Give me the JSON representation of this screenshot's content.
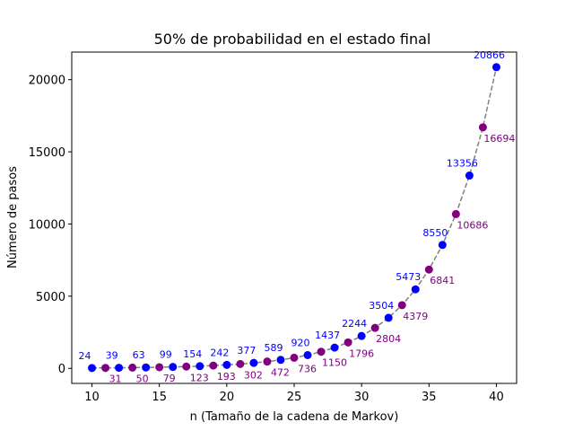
{
  "chart_data": {
    "type": "scatter",
    "title": "50% de probabilidad en el estado final",
    "xlabel": "n (Tamaño de la cadena de Markov)",
    "ylabel": "Número de pasos",
    "xlim": [
      8.5,
      41.5
    ],
    "ylim": [
      -1043,
      21909
    ],
    "xticks": [
      10,
      15,
      20,
      25,
      30,
      35,
      40
    ],
    "yticks": [
      0,
      5000,
      10000,
      15000,
      20000
    ],
    "grid": false,
    "colors": {
      "even": "#0000ff",
      "odd": "#800080",
      "line": "#808080"
    },
    "x": [
      10,
      11,
      12,
      13,
      14,
      15,
      16,
      17,
      18,
      19,
      20,
      21,
      22,
      23,
      24,
      25,
      26,
      27,
      28,
      29,
      30,
      31,
      32,
      33,
      34,
      35,
      36,
      37,
      38,
      39,
      40
    ],
    "y": [
      24,
      31,
      39,
      50,
      63,
      79,
      99,
      123,
      154,
      193,
      242,
      302,
      377,
      472,
      589,
      736,
      920,
      1150,
      1437,
      1796,
      2244,
      2804,
      3504,
      4379,
      5473,
      6841,
      8550,
      10686,
      13356,
      16694,
      20866
    ],
    "labels": [
      "24",
      "31",
      "39",
      "50",
      "63",
      "79",
      "99",
      "123",
      "154",
      "193",
      "242",
      "302",
      "377",
      "472",
      "589",
      "736",
      "920",
      "1150",
      "1437",
      "1796",
      "2244",
      "2804",
      "3504",
      "4379",
      "5473",
      "6841",
      "8550",
      "10686",
      "13356",
      "16694",
      "20866"
    ]
  }
}
